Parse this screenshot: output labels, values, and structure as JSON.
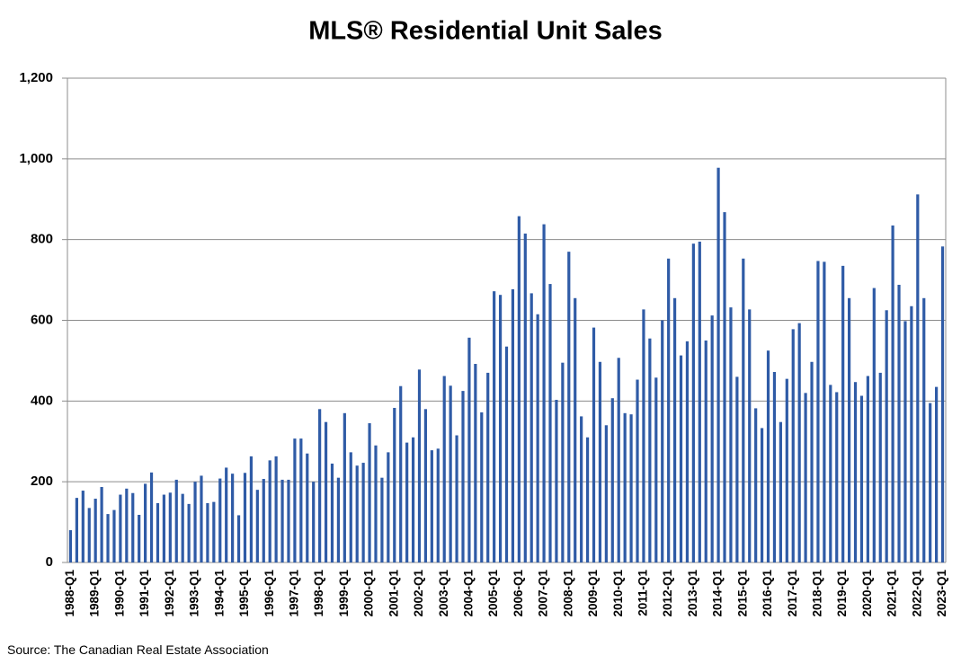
{
  "chart_data": {
    "type": "bar",
    "title": "MLS® Residential Unit Sales",
    "source": "Source: The Canadian Real Estate Association",
    "color": "#2f5ba6",
    "grid": true,
    "ylim": [
      0,
      1200
    ],
    "yticks": [
      0,
      200,
      400,
      600,
      800,
      {
        "value": 1000,
        "label": "1,000"
      },
      {
        "value": 1200,
        "label": "1,200"
      }
    ],
    "categories": [
      "1988-Q1",
      null,
      null,
      null,
      "1989-Q1",
      null,
      null,
      null,
      "1990-Q1",
      null,
      null,
      null,
      "1991-Q1",
      null,
      null,
      null,
      "1992-Q1",
      null,
      null,
      null,
      "1993-Q1",
      null,
      null,
      null,
      "1994-Q1",
      null,
      null,
      null,
      "1995-Q1",
      null,
      null,
      null,
      "1996-Q1",
      null,
      null,
      null,
      "1997-Q1",
      null,
      null,
      null,
      "1998-Q1",
      null,
      null,
      null,
      "1999-Q1",
      null,
      null,
      null,
      "2000-Q1",
      null,
      null,
      null,
      "2001-Q1",
      null,
      null,
      null,
      "2002-Q1",
      null,
      null,
      null,
      "2003-Q1",
      null,
      null,
      null,
      "2004-Q1",
      null,
      null,
      null,
      "2005-Q1",
      null,
      null,
      null,
      "2006-Q1",
      null,
      null,
      null,
      "2007-Q1",
      null,
      null,
      null,
      "2008-Q1",
      null,
      null,
      null,
      "2009-Q1",
      null,
      null,
      null,
      "2010-Q1",
      null,
      null,
      null,
      "2011-Q1",
      null,
      null,
      null,
      "2012-Q1",
      null,
      null,
      null,
      "2013-Q1",
      null,
      null,
      null,
      "2014-Q1",
      null,
      null,
      null,
      "2015-Q1",
      null,
      null,
      null,
      "2016-Q1",
      null,
      null,
      null,
      "2017-Q1",
      null,
      null,
      null,
      "2018-Q1",
      null,
      null,
      null,
      "2019-Q1",
      null,
      null,
      null,
      "2020-Q1",
      null,
      null,
      null,
      "2021-Q1",
      null,
      null,
      null,
      "2022-Q1",
      null,
      null,
      null,
      "2023-Q1"
    ],
    "values": [
      80,
      160,
      178,
      135,
      158,
      187,
      120,
      130,
      168,
      183,
      172,
      118,
      195,
      223,
      147,
      168,
      173,
      205,
      170,
      145,
      200,
      215,
      147,
      150,
      208,
      235,
      220,
      117,
      222,
      263,
      180,
      207,
      253,
      263,
      205,
      205,
      307,
      307,
      270,
      200,
      380,
      348,
      245,
      210,
      370,
      273,
      240,
      247,
      345,
      290,
      210,
      273,
      383,
      437,
      297,
      310,
      478,
      380,
      278,
      282,
      462,
      438,
      315,
      425,
      557,
      492,
      372,
      470,
      672,
      663,
      535,
      677,
      858,
      815,
      667,
      615,
      838,
      690,
      403,
      495,
      770,
      655,
      362,
      310,
      582,
      497,
      340,
      407,
      507,
      370,
      367,
      453,
      627,
      555,
      458,
      600,
      753,
      655,
      513,
      548,
      790,
      795,
      550,
      612,
      978,
      868,
      632,
      460,
      753,
      627,
      382,
      333,
      525,
      472,
      348,
      455,
      578,
      593,
      420,
      497,
      747,
      745,
      440,
      422,
      735,
      655,
      447,
      413,
      462,
      680,
      470,
      625,
      835,
      688,
      598,
      635,
      912,
      655,
      395,
      435,
      783
    ]
  }
}
